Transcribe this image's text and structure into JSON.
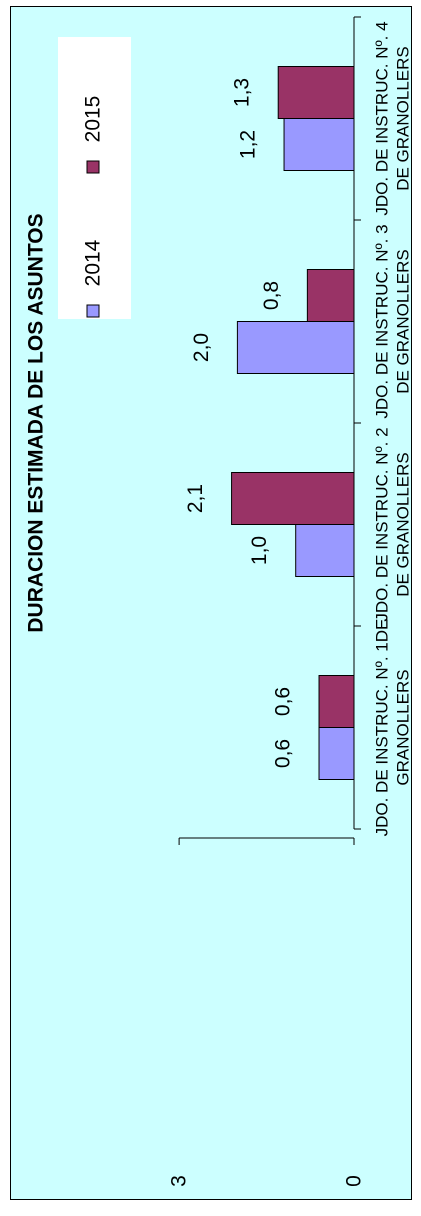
{
  "chart_data": {
    "type": "bar",
    "title": "DURACION ESTIMADA DE LOS ASUNTOS",
    "categories": [
      [
        "JDO. DE INSTRUC. Nº. 1DE",
        "GRANOLLERS"
      ],
      [
        "JDO. DE INSTRUC. Nº. 2",
        "DE GRANOLLERS"
      ],
      [
        "JDO. DE INSTRUC. Nº. 3",
        "DE GRANOLLERS"
      ],
      [
        "JDO. DE INSTRUC. Nº. 4",
        "DE GRANOLLERS"
      ]
    ],
    "series": [
      {
        "name": "2014",
        "values": [
          0.6,
          1.0,
          2.0,
          1.2
        ],
        "labels": [
          "0,6",
          "1,0",
          "2,0",
          "1,2"
        ],
        "color": "#9999ff"
      },
      {
        "name": "2015",
        "values": [
          0.6,
          2.1,
          0.8,
          1.3
        ],
        "labels": [
          "0,6",
          "2,1",
          "0,8",
          "1,3"
        ],
        "color": "#993366"
      }
    ],
    "ylim": [
      0,
      3
    ],
    "yticks": [
      "0",
      "3"
    ],
    "orientation": "rotated 90° counter-clockwise",
    "legend_position": "top-right",
    "plot_background": "#ccffff"
  }
}
